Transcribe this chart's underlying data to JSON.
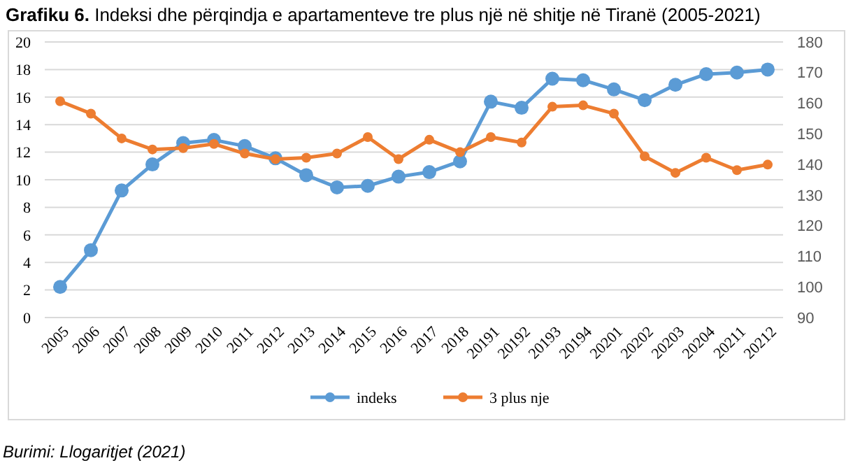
{
  "chart_data": {
    "type": "line",
    "title": "Grafiku 6.",
    "subtitle": "Indeksi dhe përqindja e apartamenteve tre plus një në shitje në Tiranë (2005-2021)",
    "categories": [
      "2005",
      "2006",
      "2007",
      "2008",
      "2009",
      "2010",
      "2011",
      "2012",
      "2013",
      "2014",
      "2015",
      "2016",
      "2017",
      "2018",
      "20191",
      "20192",
      "20193",
      "20194",
      "20201",
      "20202",
      "20203",
      "20204",
      "20211",
      "20212"
    ],
    "series": [
      {
        "name": "indeks",
        "color": "#5b9bd5",
        "axis": "y2",
        "values": [
          100,
          112,
          131.5,
          140,
          147,
          148,
          146,
          142,
          136.5,
          132.5,
          133,
          136,
          137.5,
          141,
          160.5,
          158.5,
          168,
          167.5,
          164.5,
          161,
          166,
          169.5,
          170,
          171
        ]
      },
      {
        "name": "3 plus nje",
        "color": "#ed7d31",
        "values": [
          15.7,
          14.8,
          13,
          12.2,
          12.3,
          12.6,
          11.9,
          11.5,
          11.6,
          11.9,
          13.1,
          11.5,
          12.9,
          12,
          13.1,
          12.7,
          15.3,
          15.4,
          14.8,
          11.7,
          10.5,
          11.6,
          10.7,
          11.1
        ]
      }
    ],
    "ylim": [
      0,
      20
    ],
    "yticks": [
      0,
      2,
      4,
      6,
      8,
      10,
      12,
      14,
      16,
      18,
      20
    ],
    "y2lim": [
      90,
      180
    ],
    "y2ticks": [
      90,
      100,
      110,
      120,
      130,
      140,
      150,
      160,
      170,
      180
    ],
    "grid": "y",
    "legend": "bottom",
    "marker": "circle",
    "line_style": "solid",
    "annotations": [
      "Burimi: Llogaritjet (2021)"
    ]
  }
}
